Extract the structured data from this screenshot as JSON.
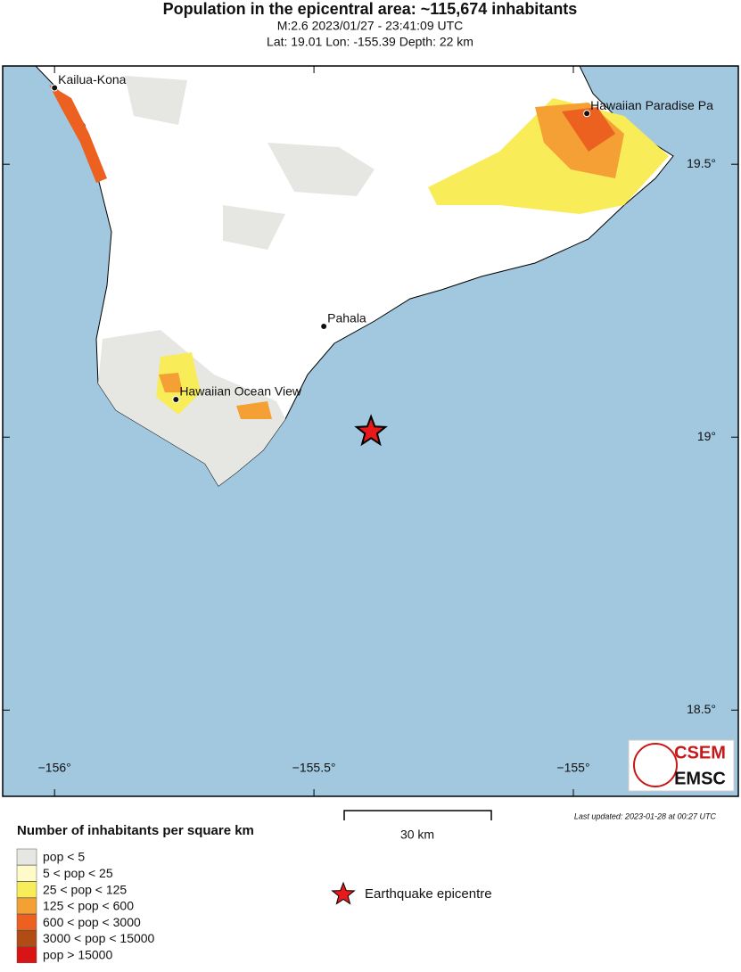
{
  "header": {
    "title": "Population in the epicentral area: ~115,674 inhabitants",
    "line1": "M:2.6 2023/01/27 - 23:41:09 UTC",
    "line2": "Lat: 19.01 Lon: -155.39 Depth: 22 km"
  },
  "map": {
    "xlim": [
      -156.1,
      -154.682
    ],
    "ylim": [
      18.342,
      19.68
    ],
    "lon_ticks": [
      {
        "value": -156,
        "label": "−156°"
      },
      {
        "value": -155.5,
        "label": "−155.5°"
      },
      {
        "value": -155,
        "label": "−155°"
      }
    ],
    "lat_ticks": [
      {
        "value": 19.5,
        "label": "19.5°"
      },
      {
        "value": 19,
        "label": "19°"
      },
      {
        "value": 18.5,
        "label": "18.5°"
      }
    ],
    "places": [
      {
        "name": "Kailua-Kona",
        "lon": -156,
        "lat": 19.64
      },
      {
        "name": "Hawaiian Paradise Pa",
        "lon": -154.974,
        "lat": 19.593
      },
      {
        "name": "Pahala",
        "lon": -155.481,
        "lat": 19.203
      },
      {
        "name": "Hawaiian Ocean View",
        "lon": -155.766,
        "lat": 19.069
      }
    ],
    "epicentre": {
      "lon": -155.39,
      "lat": 19.01,
      "color": "#e8191a"
    },
    "logo": {
      "top": "CSEM",
      "bottom": "EMSC"
    },
    "updated": "Last updated: 2023-01-28 at 00:27 UTC",
    "scale": "30 km"
  },
  "legend": {
    "title": "Number of inhabitants per square km",
    "items": [
      {
        "label": "pop < 5",
        "color": "#e6e6e2"
      },
      {
        "label": "5 < pop < 25",
        "color": "#fffbc8"
      },
      {
        "label": "25 < pop < 125",
        "color": "#f8ec58"
      },
      {
        "label": "125 < pop < 600",
        "color": "#f4a035"
      },
      {
        "label": "600 < pop < 3000",
        "color": "#ec6020"
      },
      {
        "label": "3000 < pop < 15000",
        "color": "#b04c14"
      },
      {
        "label": "pop > 15000",
        "color": "#d81414"
      }
    ],
    "epicentre_label": "Earthquake epicentre"
  }
}
